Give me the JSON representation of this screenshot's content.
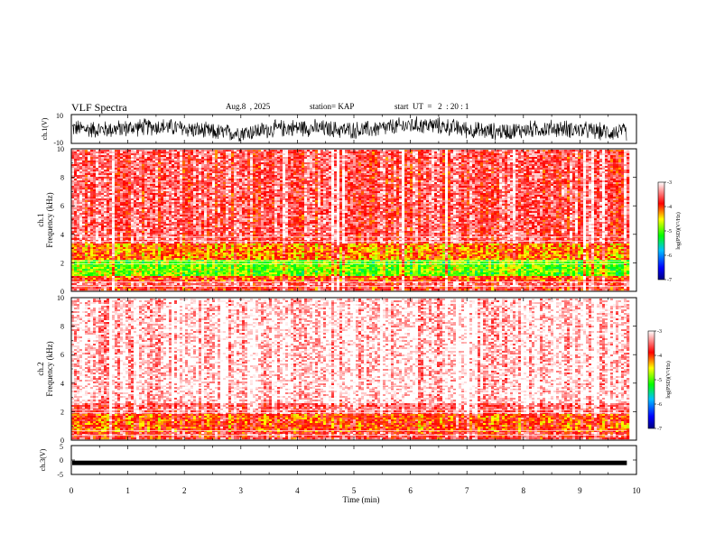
{
  "header": {
    "title": "VLF Spectra",
    "date": "Aug.8  , 2025",
    "station": "station= KAP",
    "start_ut": "start  UT  =   2  : 20 : 1"
  },
  "chart_data": [
    {
      "type": "line",
      "title": "ch.1 waveform",
      "ylabel": "ch.1(V)",
      "ylim": [
        -10,
        10
      ],
      "y_ticks": [
        "10",
        "-10"
      ],
      "xlim": [
        0,
        10
      ],
      "data_end_min": 9.83,
      "description_level_V": 0
    },
    {
      "type": "heatmap",
      "title": "ch.1 spectrogram",
      "ylabel": "ch.1\nFrequency  (kHz)",
      "ylabel_line1": "ch.1",
      "ylabel_line2": "Frequency  (kHz)",
      "ylim": [
        0,
        10
      ],
      "y_ticks": [
        "0",
        "2",
        "4",
        "6",
        "8",
        "10"
      ],
      "xlim": [
        0,
        10
      ],
      "data_end_min": 9.83,
      "bands": [
        {
          "f_from": 0.0,
          "f_to": 0.3,
          "level": -3.8
        },
        {
          "f_from": 0.3,
          "f_to": 0.6,
          "level": -3.6
        },
        {
          "f_from": 0.6,
          "f_to": 1.0,
          "level": -4.0
        },
        {
          "f_from": 1.0,
          "f_to": 2.2,
          "level": -4.9
        },
        {
          "f_from": 2.2,
          "f_to": 3.3,
          "level": -4.2
        },
        {
          "f_from": 3.3,
          "f_to": 10.0,
          "level": -3.6
        }
      ],
      "colorbar": {
        "label": "log(PSD)(V²/Hz)",
        "range": [
          -7,
          -3
        ],
        "ticks": [
          "-3",
          "-4",
          "-5",
          "-6",
          "-7"
        ]
      }
    },
    {
      "type": "heatmap",
      "title": "ch.2 spectrogram",
      "ylabel_line1": "ch.2",
      "ylabel_line2": "Frequency  (kHz)",
      "ylim": [
        0,
        10
      ],
      "y_ticks": [
        "0",
        "2",
        "4",
        "6",
        "8",
        "10"
      ],
      "xlim": [
        0,
        10
      ],
      "data_end_min": 9.83,
      "bands": [
        {
          "f_from": 0.0,
          "f_to": 0.5,
          "level": -3.7
        },
        {
          "f_from": 0.5,
          "f_to": 1.8,
          "level": -4.0
        },
        {
          "f_from": 1.8,
          "f_to": 2.6,
          "level": -3.5
        },
        {
          "f_from": 2.6,
          "f_to": 10.0,
          "level": -3.1
        }
      ],
      "colorbar": {
        "label": "log(PSD)(V²/Hz)",
        "range": [
          -7,
          -3
        ],
        "ticks": [
          "-3",
          "-4",
          "-5",
          "-6",
          "-7"
        ]
      }
    },
    {
      "type": "line",
      "title": "ch.3 waveform",
      "ylabel": "ch.3(V)",
      "ylim": [
        -5,
        5
      ],
      "y_ticks": [
        "5",
        "0",
        "-5"
      ],
      "xlim": [
        0,
        10
      ],
      "data_end_min": 9.83,
      "level_V": -1.0,
      "xlabel": "Time  (min)",
      "x_ticks": [
        "0",
        "1",
        "2",
        "3",
        "4",
        "5",
        "6",
        "7",
        "8",
        "9",
        "10"
      ]
    }
  ]
}
